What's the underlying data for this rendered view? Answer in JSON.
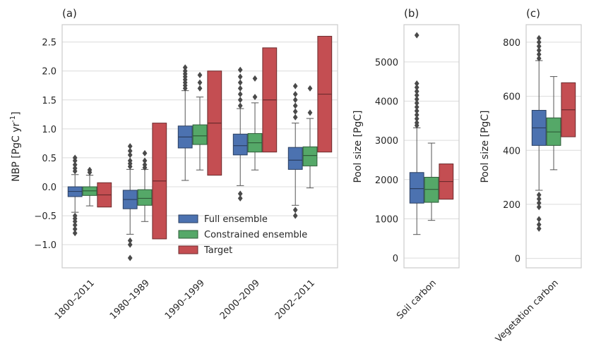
{
  "chart_data": [
    {
      "panel_label": "(a)",
      "type": "box",
      "ylabel_main": "NBP [PgC yr",
      "ylabel_sup": "-1",
      "ylabel_end": "]",
      "ylim": [
        -1.4,
        2.8
      ],
      "yticks": [
        -1.0,
        -0.5,
        0.0,
        0.5,
        1.0,
        1.5,
        2.0,
        2.5
      ],
      "ytick_labels": [
        "−1.0",
        "−0.5",
        "0.0",
        "0.5",
        "1.0",
        "1.5",
        "2.0",
        "2.5"
      ],
      "grid": true,
      "legend_position": "lower-right",
      "categories": [
        "1800–2011",
        "1980–1989",
        "1990–1999",
        "2000–2009",
        "2002–2011"
      ],
      "series": [
        {
          "name": "Full ensemble",
          "color": "#4c72b0",
          "boxes": [
            {
              "q1": -0.17,
              "median": -0.08,
              "q3": 0.0,
              "wlo": -0.44,
              "whi": 0.21,
              "fliers": [
                -0.8,
                -0.73,
                -0.66,
                -0.6,
                -0.55,
                -0.5,
                0.27,
                0.32,
                0.38,
                0.45,
                0.5
              ]
            },
            {
              "q1": -0.38,
              "median": -0.22,
              "q3": -0.06,
              "wlo": -0.82,
              "whi": 0.3,
              "fliers": [
                -1.23,
                -1.0,
                -0.93,
                0.35,
                0.4,
                0.45,
                0.55,
                0.62,
                0.7
              ]
            },
            {
              "q1": 0.67,
              "median": 0.86,
              "q3": 1.05,
              "wlo": 0.11,
              "whi": 1.66,
              "fliers": [
                1.7,
                1.75,
                1.8,
                1.85,
                1.9,
                1.95,
                2.0,
                2.06
              ]
            },
            {
              "q1": 0.55,
              "median": 0.71,
              "q3": 0.91,
              "wlo": 0.02,
              "whi": 1.35,
              "fliers": [
                -0.2,
                -0.12,
                1.4,
                1.5,
                1.6,
                1.7,
                1.8,
                1.9,
                2.02
              ]
            },
            {
              "q1": 0.3,
              "median": 0.46,
              "q3": 0.68,
              "wlo": -0.32,
              "whi": 1.1,
              "fliers": [
                -0.5,
                -0.4,
                1.2,
                1.3,
                1.4,
                1.5,
                1.6,
                1.74
              ]
            }
          ]
        },
        {
          "name": "Constrained ensemble",
          "color": "#55a868",
          "boxes": [
            {
              "q1": -0.15,
              "median": -0.07,
              "q3": 0.0,
              "wlo": -0.33,
              "whi": 0.2,
              "fliers": [
                0.25,
                0.29
              ]
            },
            {
              "q1": -0.32,
              "median": -0.2,
              "q3": -0.05,
              "wlo": -0.6,
              "whi": 0.3,
              "fliers": [
                0.33,
                0.38,
                0.45,
                0.58
              ]
            },
            {
              "q1": 0.73,
              "median": 0.88,
              "q3": 1.07,
              "wlo": 0.29,
              "whi": 1.55,
              "fliers": [
                1.7,
                1.8,
                1.93
              ]
            },
            {
              "q1": 0.6,
              "median": 0.76,
              "q3": 0.92,
              "wlo": 0.29,
              "whi": 1.45,
              "fliers": [
                1.55,
                1.87
              ]
            },
            {
              "q1": 0.36,
              "median": 0.54,
              "q3": 0.69,
              "wlo": -0.02,
              "whi": 1.18,
              "fliers": [
                1.28,
                1.7
              ]
            }
          ]
        },
        {
          "name": "Target",
          "color": "#c44e52",
          "boxes": [
            {
              "q1": -0.35,
              "median": -0.14,
              "q3": 0.07
            },
            {
              "q1": -0.9,
              "median": 0.1,
              "q3": 1.1
            },
            {
              "q1": 0.2,
              "median": 1.1,
              "q3": 2.0
            },
            {
              "q1": 0.6,
              "median": 1.5,
              "q3": 2.4
            },
            {
              "q1": 0.6,
              "median": 1.6,
              "q3": 2.6
            }
          ]
        }
      ]
    },
    {
      "panel_label": "(b)",
      "type": "box",
      "ylabel": "Pool size [PgC]",
      "ylim": [
        -250,
        5950
      ],
      "yticks": [
        0,
        1000,
        2000,
        3000,
        4000,
        5000
      ],
      "ytick_labels": [
        "0",
        "1000",
        "2000",
        "3000",
        "4000",
        "5000"
      ],
      "grid": true,
      "categories": [
        "Soil carbon"
      ],
      "series": [
        {
          "name": "Full ensemble",
          "color": "#4c72b0",
          "boxes": [
            {
              "q1": 1400,
              "median": 1770,
              "q3": 2180,
              "wlo": 600,
              "whi": 3320,
              "fliers": [
                3380,
                3450,
                3550,
                3650,
                3750,
                3850,
                3950,
                4050,
                4150,
                4250,
                4350,
                4450,
                5680
              ]
            }
          ]
        },
        {
          "name": "Constrained ensemble",
          "color": "#55a868",
          "boxes": [
            {
              "q1": 1420,
              "median": 1750,
              "q3": 2060,
              "wlo": 960,
              "whi": 2930
            }
          ]
        },
        {
          "name": "Target",
          "color": "#c44e52",
          "boxes": [
            {
              "q1": 1500,
              "median": 1950,
              "q3": 2400
            }
          ]
        }
      ]
    },
    {
      "panel_label": "(c)",
      "type": "box",
      "ylabel": "Pool size [PgC]",
      "ylim": [
        -35,
        865
      ],
      "yticks": [
        0,
        200,
        400,
        600,
        800
      ],
      "ytick_labels": [
        "0",
        "200",
        "400",
        "600",
        "800"
      ],
      "grid": true,
      "categories": [
        "Vegetation carbon"
      ],
      "series": [
        {
          "name": "Full ensemble",
          "color": "#4c72b0",
          "boxes": [
            {
              "q1": 418,
              "median": 483,
              "q3": 548,
              "wlo": 252,
              "whi": 732,
              "fliers": [
                110,
                125,
                145,
                190,
                205,
                220,
                235,
                740,
                755,
                770,
                785,
                800,
                815
              ]
            }
          ]
        },
        {
          "name": "Constrained ensemble",
          "color": "#55a868",
          "boxes": [
            {
              "q1": 418,
              "median": 468,
              "q3": 520,
              "wlo": 328,
              "whi": 673
            }
          ]
        },
        {
          "name": "Target",
          "color": "#c44e52",
          "boxes": [
            {
              "q1": 450,
              "median": 550,
              "q3": 650
            }
          ]
        }
      ]
    }
  ]
}
